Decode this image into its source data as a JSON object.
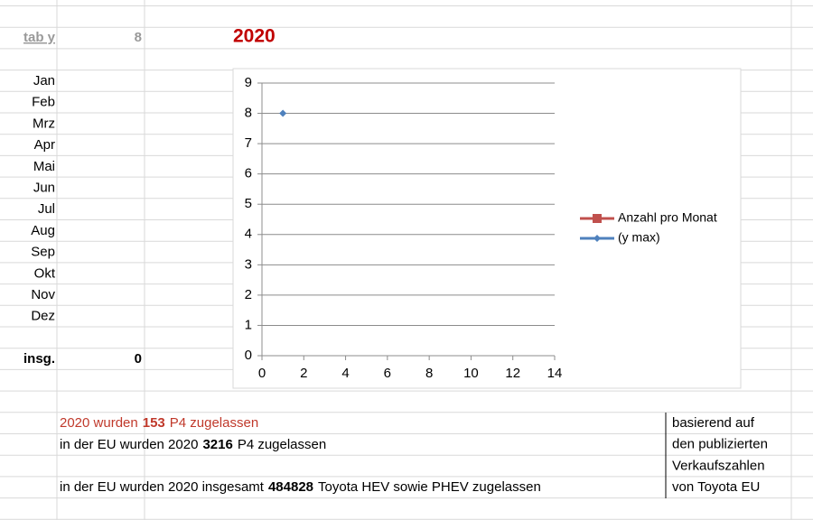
{
  "sheet": {
    "tab_y_label": "tab y",
    "tab_y_value": 8,
    "year": "2020",
    "months": [
      "Jan",
      "Feb",
      "Mrz",
      "Apr",
      "Mai",
      "Jun",
      "Jul",
      "Aug",
      "Sep",
      "Okt",
      "Nov",
      "Dez"
    ],
    "total_label": "insg.",
    "total_value": 0,
    "lines": [
      {
        "before": "2020 wurden",
        "number": 153,
        "after": "P4 zugelassen"
      },
      {
        "before": "in der EU wurden 2020",
        "number": 3216,
        "after": "P4 zugelassen"
      },
      {
        "before": "in der EU wurden 2020 insgesamt",
        "number": 484828,
        "after": "Toyota HEV sowie PHEV zugelassen"
      }
    ],
    "note": [
      "basierend auf",
      "den publizierten",
      "Verkaufszahlen",
      "von Toyota EU"
    ]
  },
  "chart_data": {
    "type": "scatter",
    "series": [
      {
        "name": "Anzahl pro Monat",
        "color": "#c0504d",
        "marker": "square",
        "x": [],
        "values": []
      },
      {
        "name": "(y max)",
        "color": "#4f81bd",
        "marker": "diamond",
        "x": [
          1
        ],
        "values": [
          8
        ]
      }
    ],
    "xlim": [
      0,
      14
    ],
    "xticks": [
      0,
      2,
      4,
      6,
      8,
      10,
      12,
      14
    ],
    "ylim": [
      0,
      9
    ],
    "yticks": [
      0,
      1,
      2,
      3,
      4,
      5,
      6,
      7,
      8,
      9
    ],
    "grid": true,
    "legend": "right"
  }
}
